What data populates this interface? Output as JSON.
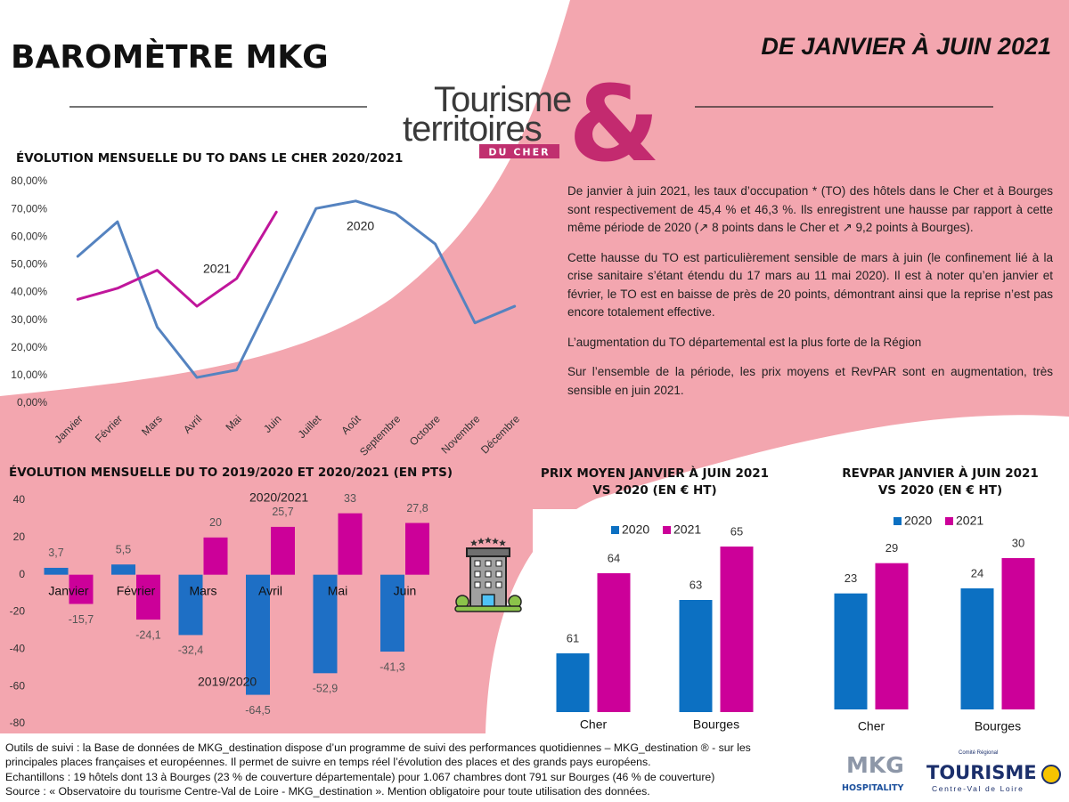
{
  "header": {
    "title": "BAROMÈTRE MKG",
    "period": "DE JANVIER À JUIN 2021"
  },
  "logo": {
    "line1": "Tourisme",
    "line2": "territoires",
    "badge": "DU CHER",
    "symbol": "&"
  },
  "summary": [
    "De janvier à juin 2021, les taux d’occupation * (TO) des hôtels dans le Cher et à Bourges sont respectivement de 45,4 % et 46,3 %. Ils enregistrent une hausse par rapport à cette même période de 2020 (↗ 8 points dans le Cher et ↗ 9,2 points à Bourges).",
    "Cette hausse du TO est particulièrement sensible de mars à juin (le confinement lié à la crise sanitaire s’étant étendu du 17 mars au 11 mai 2020). Il est à noter qu’en janvier et février, le TO est en baisse de près de 20 points, démontrant ainsi que la reprise n’est pas encore totalement effective.",
    "L’augmentation du TO départemental est la plus forte de la Région",
    "Sur l’ensemble de la période, les prix moyens et RevPAR sont en augmentation, très sensible en juin 2021."
  ],
  "footer": [
    "Outils de suivi : la Base de données de MKG_destination dispose d’un programme de suivi des performances quotidiennes – MKG_destination ® - sur les",
    "principales places françaises et européennes. Il permet de suivre en temps réel l’évolution des places et des grands pays européens.",
    "Echantillons : 19 hôtels dont 13 à Bourges (23 % de couverture départementale) pour 1.067 chambres dont 791 sur Bourges (46 % de couverture)",
    "Source : « Observatoire du tourisme Centre-Val de Loire - MKG_destination ». Mention obligatoire pour toute utilisation des données."
  ],
  "partners": {
    "mkg": "MKG",
    "mkg_sub": "HOSPITALITY",
    "crt_top": "Comité Régional",
    "crt_name": "TOURISME",
    "crt_sub": "Centre-Val de Loire"
  },
  "chart_data": [
    {
      "type": "line",
      "title": "ÉVOLUTION MENSUELLE DU TO DANS LE CHER 2020/2021",
      "categories": [
        "Janvier",
        "Février",
        "Mars",
        "Avril",
        "Mai",
        "Juin",
        "Juillet",
        "Août",
        "Septembre",
        "Octobre",
        "Novembre",
        "Décembre"
      ],
      "series": [
        {
          "name": "2020",
          "color": "#5583c0",
          "values": [
            53,
            65.5,
            27.5,
            9.3,
            12,
            41,
            70.3,
            73,
            68.5,
            57.5,
            29,
            35
          ]
        },
        {
          "name": "2021",
          "color": "#c0169b",
          "values": [
            37.5,
            41.5,
            48,
            35,
            45,
            69,
            null,
            null,
            null,
            null,
            null,
            null
          ]
        }
      ],
      "ylim": [
        0,
        80
      ],
      "yticks": [
        {
          "value": 0,
          "label": "0,00%"
        },
        {
          "value": 10,
          "label": "10,00%"
        },
        {
          "value": 20,
          "label": "20,00%"
        },
        {
          "value": 30,
          "label": "30,00%"
        },
        {
          "value": 40,
          "label": "40,00%"
        },
        {
          "value": 50,
          "label": "50,00%"
        },
        {
          "value": 60,
          "label": "60,00%"
        },
        {
          "value": 70,
          "label": "70,00%"
        },
        {
          "value": 80,
          "label": "80,00%"
        }
      ],
      "grid": false
    },
    {
      "type": "bar",
      "title": "ÉVOLUTION MENSUELLE DU TO 2019/2020 ET 2020/2021 (EN PTS)",
      "categories": [
        "Janvier",
        "Février",
        "Mars",
        "Avril",
        "Mai",
        "Juin"
      ],
      "series": [
        {
          "name": "2019/2020",
          "color": "#1e6fc5",
          "values": [
            3.7,
            5.5,
            -32.4,
            -64.5,
            -52.9,
            -41.3
          ],
          "value_labels": [
            "3,7",
            "5,5",
            "-32,4",
            "-64,5",
            "-52,9",
            "-41,3"
          ]
        },
        {
          "name": "2020/2021",
          "color": "#cc0099",
          "values": [
            -15.7,
            -24.1,
            20,
            25.7,
            33,
            27.8
          ],
          "value_labels": [
            "-15,7",
            "-24,1",
            "20",
            "25,7",
            "33",
            "27,8"
          ]
        }
      ],
      "ylim": [
        -80,
        40
      ],
      "yticks": [
        -80,
        -60,
        -40,
        -20,
        0,
        20,
        40
      ],
      "grid": false
    },
    {
      "type": "bar",
      "title": "PRIX MOYEN JANVIER À JUIN 2021 VS 2020 (EN € HT)",
      "categories": [
        "Cher",
        "Bourges"
      ],
      "series": [
        {
          "name": "2020",
          "color": "#0c70c2",
          "values": [
            61,
            63
          ]
        },
        {
          "name": "2021",
          "color": "#cc0099",
          "values": [
            64,
            65
          ]
        }
      ],
      "ylim": [
        58.8,
        65.6
      ],
      "legend": "top"
    },
    {
      "type": "bar",
      "title": "REVPAR JANVIER À JUIN 2021 VS 2020 (EN € HT)",
      "categories": [
        "Cher",
        "Bourges"
      ],
      "series": [
        {
          "name": "2020",
          "color": "#0c70c2",
          "values": [
            23,
            24
          ]
        },
        {
          "name": "2021",
          "color": "#cc0099",
          "values": [
            29,
            30
          ]
        }
      ],
      "ylim": [
        0,
        33
      ],
      "legend": "top"
    }
  ]
}
